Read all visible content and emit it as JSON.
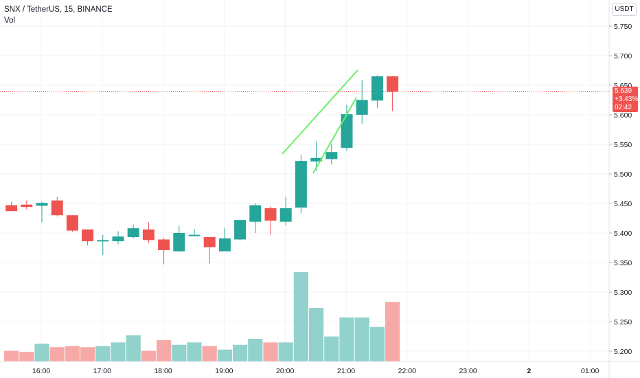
{
  "header": {
    "symbol_line": "SNX / TetherUS, 15, BINANCE",
    "volume_label": "Vol"
  },
  "currency": "USDT",
  "last_price": {
    "price": "5.639",
    "change": "+3.43%",
    "countdown": "02:42"
  },
  "colors": {
    "up": "#26a69a",
    "down": "#ef5350",
    "up_volume": "#92d2cc",
    "down_volume": "#f7a9a7",
    "trendline": "#66ee66",
    "grid": "#f0f3fa"
  },
  "chart_data": {
    "type": "candlestick",
    "title": "SNX / TetherUS, 15, BINANCE",
    "y_axis": {
      "min": 5.19,
      "max": 5.77,
      "ticks": [
        "5.750",
        "5.700",
        "5.650",
        "5.600",
        "5.550",
        "5.500",
        "5.450",
        "5.400",
        "5.350",
        "5.300",
        "5.250",
        "5.200"
      ]
    },
    "x_axis": {
      "ticks": [
        "16:00",
        "17:00",
        "18:00",
        "19:00",
        "20:00",
        "21:00",
        "22:00",
        "23:00",
        "2",
        "01:00"
      ]
    },
    "candles": [
      {
        "t": "15:30",
        "o": 5.447,
        "h": 5.453,
        "l": 5.437,
        "c": 5.437,
        "v": 9
      },
      {
        "t": "15:45",
        "o": 5.448,
        "h": 5.455,
        "l": 5.44,
        "c": 5.444,
        "v": 8
      },
      {
        "t": "16:00",
        "o": 5.446,
        "h": 5.453,
        "l": 5.418,
        "c": 5.451,
        "v": 15
      },
      {
        "t": "16:15",
        "o": 5.455,
        "h": 5.461,
        "l": 5.428,
        "c": 5.43,
        "v": 12
      },
      {
        "t": "16:30",
        "o": 5.43,
        "h": 5.43,
        "l": 5.402,
        "c": 5.404,
        "v": 13
      },
      {
        "t": "16:45",
        "o": 5.406,
        "h": 5.406,
        "l": 5.379,
        "c": 5.386,
        "v": 12
      },
      {
        "t": "17:00",
        "o": 5.386,
        "h": 5.397,
        "l": 5.363,
        "c": 5.388,
        "v": 13
      },
      {
        "t": "17:15",
        "o": 5.386,
        "h": 5.403,
        "l": 5.381,
        "c": 5.394,
        "v": 16
      },
      {
        "t": "17:30",
        "o": 5.393,
        "h": 5.414,
        "l": 5.391,
        "c": 5.408,
        "v": 22
      },
      {
        "t": "17:45",
        "o": 5.406,
        "h": 5.418,
        "l": 5.383,
        "c": 5.388,
        "v": 9
      },
      {
        "t": "18:00",
        "o": 5.389,
        "h": 5.392,
        "l": 5.347,
        "c": 5.371,
        "v": 18
      },
      {
        "t": "18:15",
        "o": 5.369,
        "h": 5.412,
        "l": 5.368,
        "c": 5.4,
        "v": 14
      },
      {
        "t": "18:30",
        "o": 5.396,
        "h": 5.407,
        "l": 5.394,
        "c": 5.397,
        "v": 16
      },
      {
        "t": "18:45",
        "o": 5.393,
        "h": 5.393,
        "l": 5.348,
        "c": 5.376,
        "v": 13
      },
      {
        "t": "19:00",
        "o": 5.369,
        "h": 5.409,
        "l": 5.369,
        "c": 5.391,
        "v": 10
      },
      {
        "t": "19:15",
        "o": 5.389,
        "h": 5.423,
        "l": 5.387,
        "c": 5.422,
        "v": 14
      },
      {
        "t": "19:30",
        "o": 5.419,
        "h": 5.45,
        "l": 5.4,
        "c": 5.447,
        "v": 19
      },
      {
        "t": "19:45",
        "o": 5.442,
        "h": 5.445,
        "l": 5.397,
        "c": 5.421,
        "v": 16
      },
      {
        "t": "20:00",
        "o": 5.419,
        "h": 5.461,
        "l": 5.413,
        "c": 5.442,
        "v": 16
      },
      {
        "t": "20:15",
        "o": 5.443,
        "h": 5.532,
        "l": 5.433,
        "c": 5.522,
        "v": 75
      },
      {
        "t": "20:30",
        "o": 5.521,
        "h": 5.555,
        "l": 5.505,
        "c": 5.527,
        "v": 45
      },
      {
        "t": "20:45",
        "o": 5.525,
        "h": 5.551,
        "l": 5.516,
        "c": 5.537,
        "v": 21
      },
      {
        "t": "21:00",
        "o": 5.544,
        "h": 5.617,
        "l": 5.539,
        "c": 5.601,
        "v": 37
      },
      {
        "t": "21:15",
        "o": 5.6,
        "h": 5.659,
        "l": 5.585,
        "c": 5.625,
        "v": 37
      },
      {
        "t": "21:30",
        "o": 5.624,
        "h": 5.667,
        "l": 5.612,
        "c": 5.665,
        "v": 29
      },
      {
        "t": "21:45",
        "o": 5.665,
        "h": 5.665,
        "l": 5.606,
        "c": 5.639,
        "v": 50
      }
    ],
    "last_price_line": 5.639
  }
}
